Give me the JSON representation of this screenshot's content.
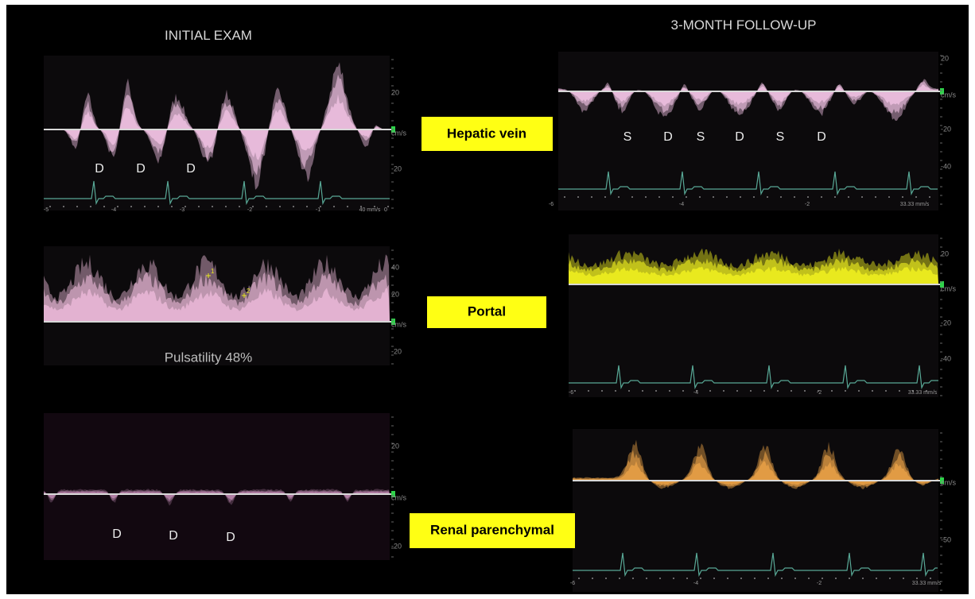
{
  "titles": {
    "initial": "INITIAL EXAM",
    "follow_up": "3-MONTH FOLLOW-UP"
  },
  "vessel_labels": [
    "Hepatic vein",
    "Portal",
    "Renal parenchymal"
  ],
  "panels": [
    {
      "scale": [
        "20",
        "cm/s",
        "-20"
      ],
      "time": [
        "-5",
        "-4",
        "-3",
        "-2",
        "-1",
        "0"
      ],
      "sweep": "40 mm/s",
      "markers": [
        "D",
        "D",
        "D"
      ]
    },
    {
      "scale": [
        "20",
        "cm/s",
        "-20",
        "-40"
      ],
      "time": [
        "-6",
        "-4",
        "-2"
      ],
      "sweep": "33.33 mm/s",
      "markers": [
        "S",
        "D",
        "S",
        "D",
        "S",
        "D"
      ]
    },
    {
      "scale": [
        "40",
        "20",
        "cm/s",
        "-20"
      ],
      "calipers": [
        "1",
        "2"
      ],
      "note": "Pulsatility 48%"
    },
    {
      "scale": [
        "20",
        "cm/s",
        "-20",
        "-40"
      ],
      "time": [
        "-6",
        "-4",
        "-2"
      ],
      "sweep": "33.33 mm/s"
    },
    {
      "scale": [
        "20",
        "cm/s",
        "-20"
      ],
      "markers": [
        "D",
        "D",
        "D"
      ]
    },
    {
      "scale": [
        "cm/s",
        "-50"
      ],
      "time": [
        "-6",
        "-4",
        "-2"
      ],
      "sweep": "33.33 mm/s"
    }
  ]
}
